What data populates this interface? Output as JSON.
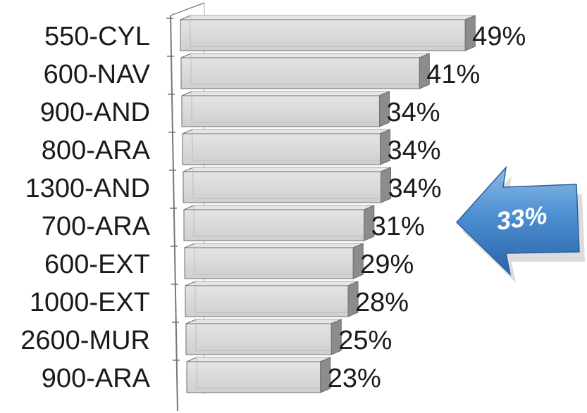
{
  "chart_data": {
    "type": "bar",
    "orientation": "horizontal",
    "categories": [
      "550-CYL",
      "600-NAV",
      "900-AND",
      "800-ARA",
      "1300-AND",
      "700-ARA",
      "600-EXT",
      "1000-EXT",
      "2600-MUR",
      "900-ARA"
    ],
    "values": [
      49,
      41,
      34,
      34,
      34,
      31,
      29,
      28,
      25,
      23
    ],
    "value_labels": [
      "49%",
      "41%",
      "34%",
      "34%",
      "34%",
      "31%",
      "29%",
      "28%",
      "25%",
      "23%"
    ],
    "xlim": [
      0,
      50
    ],
    "style": "3d",
    "grid": false,
    "legend": "none",
    "annotation": {
      "text": "33%",
      "shape": "left-arrow"
    },
    "colors": {
      "bar_face": "#d6d6d6",
      "bar_top": "#e6e6e6",
      "bar_side": "#8c8c8c",
      "bar_edge": "#6e6e6e",
      "arrow_light": "#6fa8dc",
      "arrow_dark": "#2f6bb0"
    }
  }
}
